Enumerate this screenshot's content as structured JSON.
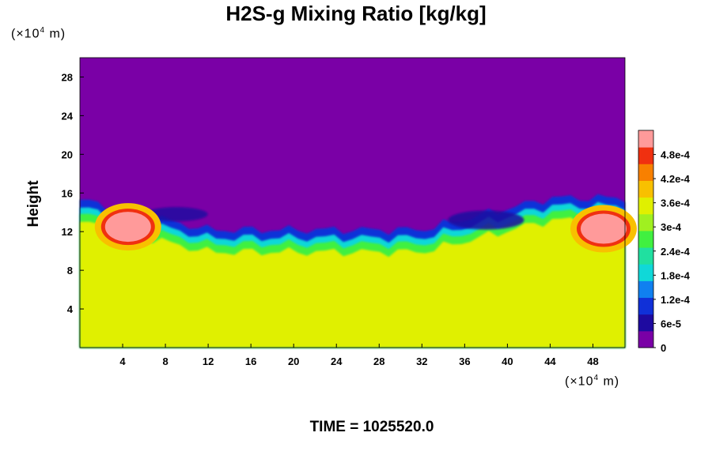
{
  "chart_data": {
    "type": "heatmap",
    "title": "H2S-g Mixing Ratio [kg/kg]",
    "xlabel": "",
    "ylabel": "Height",
    "x_unit": "(×10",
    "x_unit_exp": "4",
    "x_unit_tail": " m)",
    "y_unit": "(×10",
    "y_unit_exp": "4",
    "y_unit_tail": " m)",
    "xlim": [
      0,
      51
    ],
    "ylim": [
      0,
      30
    ],
    "x_ticks": [
      4,
      8,
      12,
      16,
      20,
      24,
      28,
      32,
      36,
      40,
      44,
      48
    ],
    "y_ticks": [
      4,
      8,
      12,
      16,
      20,
      24,
      28
    ],
    "colorbar": {
      "range": [
        0,
        0.00054
      ],
      "tick_values": [
        0,
        6e-05,
        0.00012,
        0.00018,
        0.00024,
        0.0003,
        0.00036,
        0.00042,
        0.00048
      ],
      "tick_labels": [
        "0",
        "6e-5",
        "1.2e-4",
        "1.8e-4",
        "2.4e-4",
        "3e-4",
        "3.6e-4",
        "4.2e-4",
        "4.8e-4"
      ],
      "colors": [
        "#7a00a6",
        "#1e0aa0",
        "#1030d8",
        "#1080f0",
        "#10d8d8",
        "#20e0a0",
        "#40f040",
        "#a0f020",
        "#e0f000",
        "#f8c000",
        "#f88000",
        "#f03010",
        "#ff9a9a"
      ]
    },
    "fields": {
      "upper_value": 0,
      "lower_value": 0.00036,
      "interface_height_left": 14.8,
      "interface_height_mid": 11.7,
      "interface_height_right": 15.0,
      "high_plumes": [
        {
          "x": 4.5,
          "y": 12.5,
          "value": 0.00053
        },
        {
          "x": 49.0,
          "y": 12.3,
          "value": 0.00053
        }
      ]
    },
    "grid": false
  },
  "footer": {
    "time_label": "TIME = 1025520.0"
  }
}
